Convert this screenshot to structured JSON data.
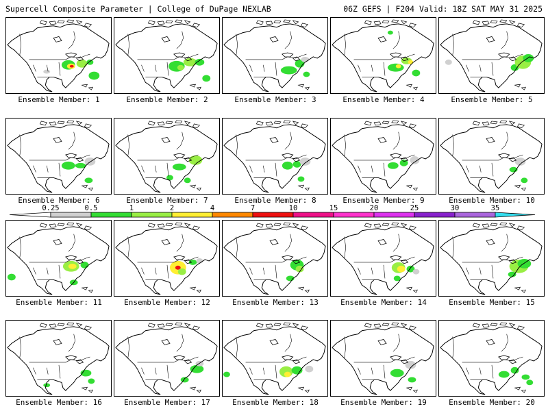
{
  "header": {
    "title": "Supercell Composite Parameter | College of DuPage NEXLAB",
    "run_info": "06Z GEFS | F204 Valid: 18Z SAT MAY 31 2025"
  },
  "legend": {
    "ticks": [
      "0.25",
      "0.5",
      "1",
      "2",
      "4",
      "7",
      "10",
      "15",
      "20",
      "25",
      "30",
      "35"
    ],
    "colors": [
      "#d0d0d0",
      "#33dd33",
      "#99ee44",
      "#ffee33",
      "#ff8800",
      "#ee1111",
      "#ee1188",
      "#ff33cc",
      "#dd33ee",
      "#8822cc",
      "#aa66dd",
      "#33ddee"
    ]
  },
  "panels": [
    {
      "label": "Ensemble Member: 1"
    },
    {
      "label": "Ensemble Member: 2"
    },
    {
      "label": "Ensemble Member: 3"
    },
    {
      "label": "Ensemble Member: 4"
    },
    {
      "label": "Ensemble Member: 5"
    },
    {
      "label": "Ensemble Member: 6"
    },
    {
      "label": "Ensemble Member: 7"
    },
    {
      "label": "Ensemble Member: 8"
    },
    {
      "label": "Ensemble Member: 9"
    },
    {
      "label": "Ensemble Member: 10"
    },
    {
      "label": "Ensemble Member: 11"
    },
    {
      "label": "Ensemble Member: 12"
    },
    {
      "label": "Ensemble Member: 13"
    },
    {
      "label": "Ensemble Member: 14"
    },
    {
      "label": "Ensemble Member: 15"
    },
    {
      "label": "Ensemble Member: 16"
    },
    {
      "label": "Ensemble Member: 17"
    },
    {
      "label": "Ensemble Member: 18"
    },
    {
      "label": "Ensemble Member: 19"
    },
    {
      "label": "Ensemble Member: 20"
    }
  ]
}
